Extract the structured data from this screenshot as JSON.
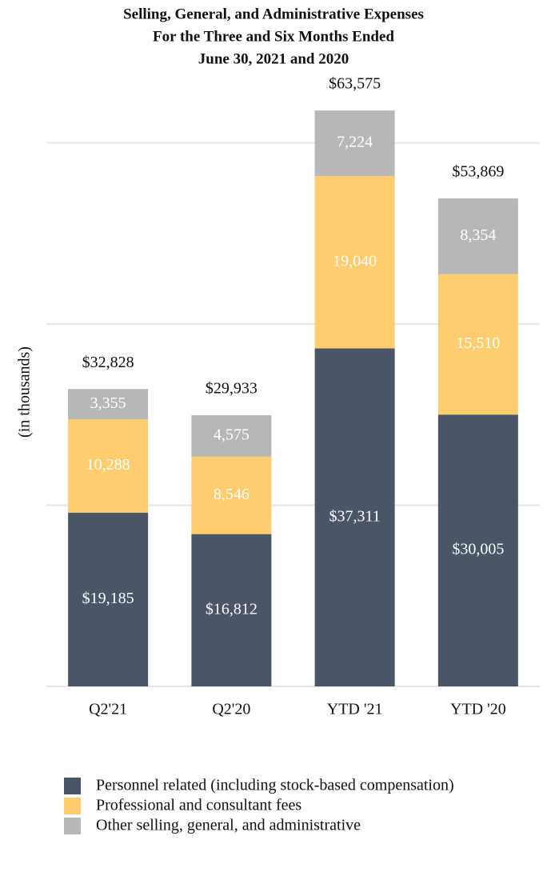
{
  "chart_data": {
    "type": "stacked-bar",
    "title": [
      "Selling, General, and Administrative Expenses",
      "For the Three and Six Months Ended",
      "June 30, 2021 and 2020"
    ],
    "y_label": "(in thousands)",
    "categories": [
      "Q2'21",
      "Q2'20",
      "YTD '21",
      "YTD '20"
    ],
    "series": [
      {
        "name": "Personnel related (including stock-based compensation)",
        "color": "#4a5568",
        "values": [
          19185,
          16812,
          37311,
          30005
        ],
        "value_labels": [
          "$19,185",
          "$16,812",
          "$37,311",
          "$30,005"
        ]
      },
      {
        "name": "Professional and consultant fees",
        "color": "#fecd6f",
        "values": [
          10288,
          8546,
          19040,
          15510
        ],
        "value_labels": [
          "10,288",
          "8,546",
          "19,040",
          "15,510"
        ]
      },
      {
        "name": "Other selling, general, and administrative",
        "color": "#b7b7b7",
        "values": [
          3355,
          4575,
          7224,
          8354
        ],
        "value_labels": [
          "3,355",
          "4,575",
          "7,224",
          "8,354"
        ]
      }
    ],
    "totals": [
      32828,
      29933,
      63575,
      53869
    ],
    "total_labels": [
      "$32,828",
      "$29,933",
      "$63,575",
      "$53,869"
    ],
    "ylim": [
      0,
      65000
    ],
    "yticks": [
      0,
      20000,
      40000,
      60000
    ],
    "grid": true,
    "legend": "bottom"
  }
}
